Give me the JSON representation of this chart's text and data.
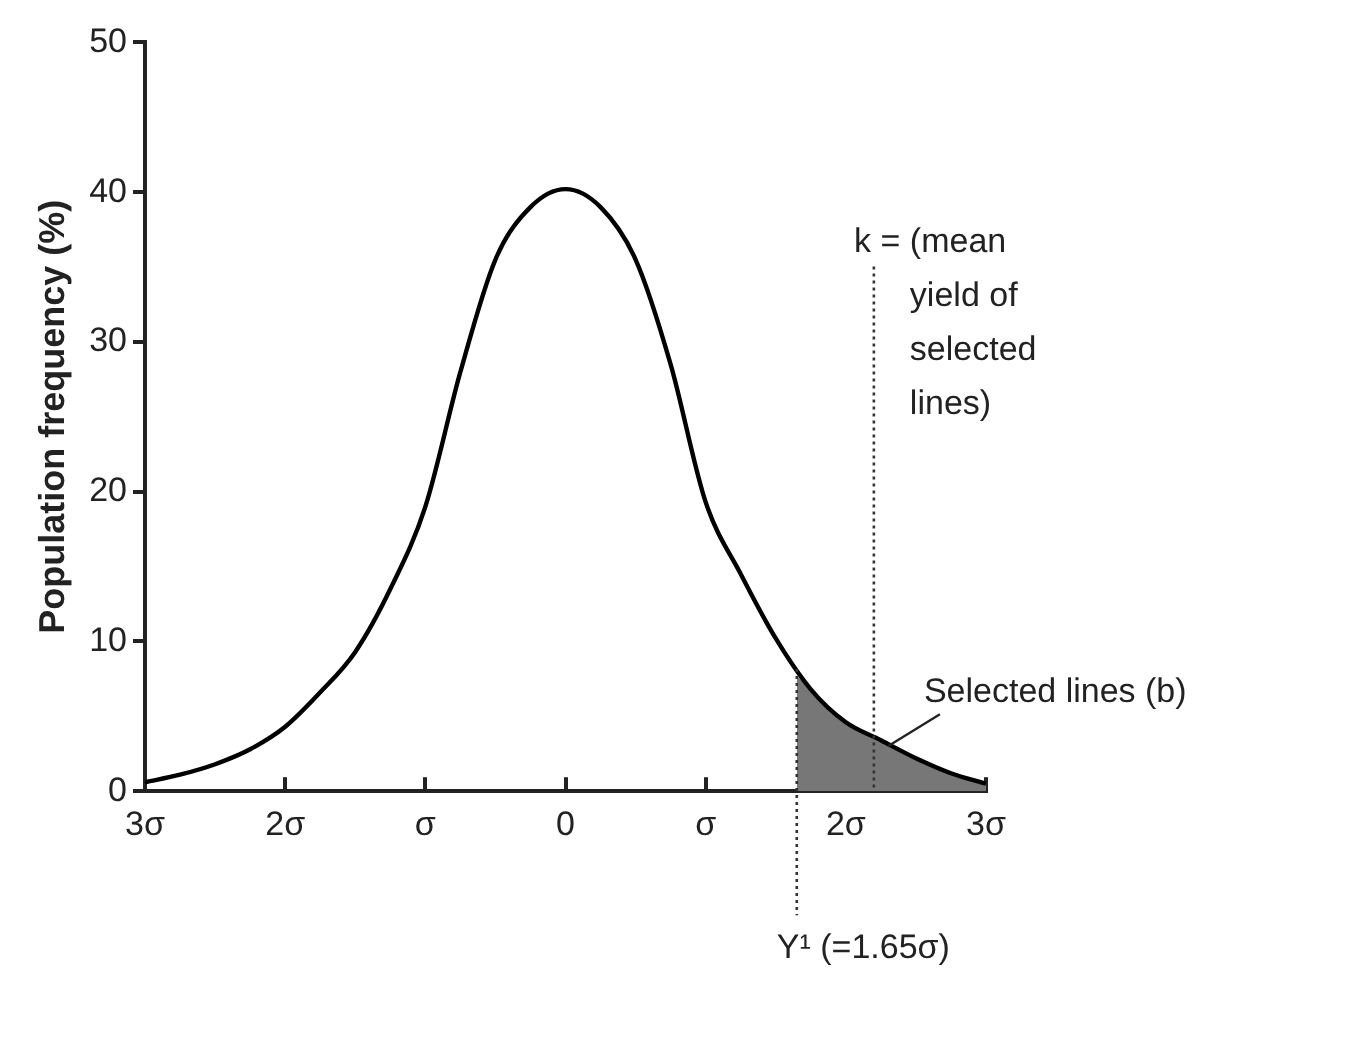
{
  "chart_data": {
    "type": "line",
    "ylabel": "Population frequency (%)",
    "x": [
      -3,
      -2.75,
      -2.5,
      -2.25,
      -2,
      -1.75,
      -1.5,
      -1.25,
      -1,
      -0.75,
      -0.5,
      -0.25,
      0,
      0.25,
      0.5,
      0.75,
      1,
      1.25,
      1.5,
      1.75,
      2,
      2.25,
      2.5,
      2.75,
      3
    ],
    "series": [
      {
        "color": "#000000",
        "values": [
          0.6,
          1.1,
          1.8,
          2.8,
          4.3,
          6.6,
          9.3,
          13.5,
          19,
          28,
          35.5,
          39,
          40.2,
          39,
          35.5,
          28.5,
          19.3,
          14.5,
          10.2,
          6.8,
          4.6,
          3.4,
          2.2,
          1.2,
          0.5
        ]
      },
      {
        "type": "area",
        "color": "#777777",
        "x": [
          1.65,
          1.75,
          2,
          2.25,
          2.5,
          2.75,
          3
        ],
        "values": [
          7.7,
          6.8,
          4.6,
          3.4,
          2.2,
          1.2,
          0.5
        ]
      }
    ],
    "xlim": [
      -3,
      3
    ],
    "xticks": [
      {
        "value": -3,
        "label": "3σ"
      },
      {
        "value": -2,
        "label": "2σ"
      },
      {
        "value": -1,
        "label": "σ"
      },
      0,
      {
        "value": 1,
        "label": "σ"
      },
      {
        "value": 2,
        "label": "2σ"
      },
      {
        "value": 3,
        "label": "3σ"
      }
    ],
    "ylim": [
      0,
      50
    ],
    "yticks": [
      0,
      10,
      20,
      30,
      40,
      50
    ],
    "ref_lines": [
      {
        "axis": "x",
        "value": 2.2,
        "label": "k = (mean yield of selected lines)",
        "line_style": "dotted"
      },
      {
        "axis": "x",
        "value": 1.65,
        "label": "Y¹ (=1.65σ)",
        "line_style": "dotted"
      }
    ],
    "annotations": [
      {
        "text": "Selected lines (b)",
        "x": 2.3,
        "y": 3
      }
    ],
    "grid": false,
    "legend": false,
    "marker": "none",
    "line_style": "solid"
  }
}
